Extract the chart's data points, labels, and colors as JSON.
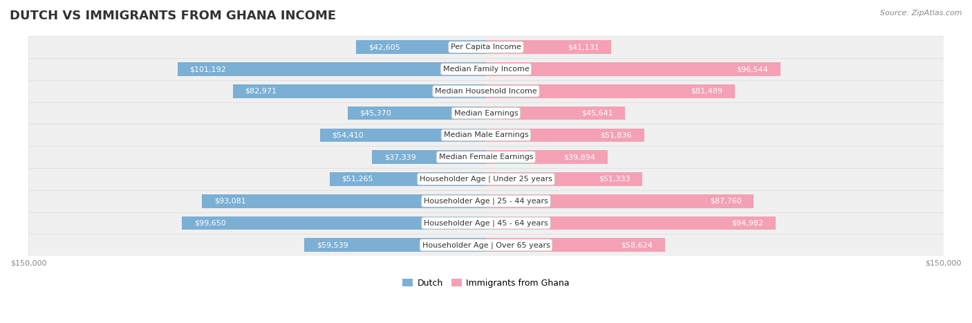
{
  "title": "DUTCH VS IMMIGRANTS FROM GHANA INCOME",
  "source": "Source: ZipAtlas.com",
  "categories": [
    "Per Capita Income",
    "Median Family Income",
    "Median Household Income",
    "Median Earnings",
    "Median Male Earnings",
    "Median Female Earnings",
    "Householder Age | Under 25 years",
    "Householder Age | 25 - 44 years",
    "Householder Age | 45 - 64 years",
    "Householder Age | Over 65 years"
  ],
  "dutch_values": [
    42605,
    101192,
    82971,
    45370,
    54410,
    37339,
    51265,
    93081,
    99650,
    59539
  ],
  "ghana_values": [
    41131,
    96544,
    81489,
    45641,
    51836,
    39894,
    51333,
    87760,
    94982,
    58624
  ],
  "dutch_labels": [
    "$42,605",
    "$101,192",
    "$82,971",
    "$45,370",
    "$54,410",
    "$37,339",
    "$51,265",
    "$93,081",
    "$99,650",
    "$59,539"
  ],
  "ghana_labels": [
    "$41,131",
    "$96,544",
    "$81,489",
    "$45,641",
    "$51,836",
    "$39,894",
    "$51,333",
    "$87,760",
    "$94,982",
    "$58,624"
  ],
  "dutch_color": "#7bafd4",
  "ghana_color": "#f4a0b5",
  "dutch_label_color_normal": "#555555",
  "dutch_label_color_inside": "#ffffff",
  "ghana_label_color_normal": "#555555",
  "ghana_label_color_inside": "#ffffff",
  "max_value": 150000,
  "row_bg_color": "#f0f0f0",
  "row_border_color": "#dddddd",
  "center_label_bg": "#ffffff",
  "center_label_border": "#cccccc",
  "background_color": "#ffffff",
  "title_fontsize": 13,
  "source_fontsize": 8,
  "bar_label_fontsize": 8,
  "category_fontsize": 8,
  "axis_label_fontsize": 8,
  "legend_fontsize": 9,
  "inside_threshold": 30000
}
